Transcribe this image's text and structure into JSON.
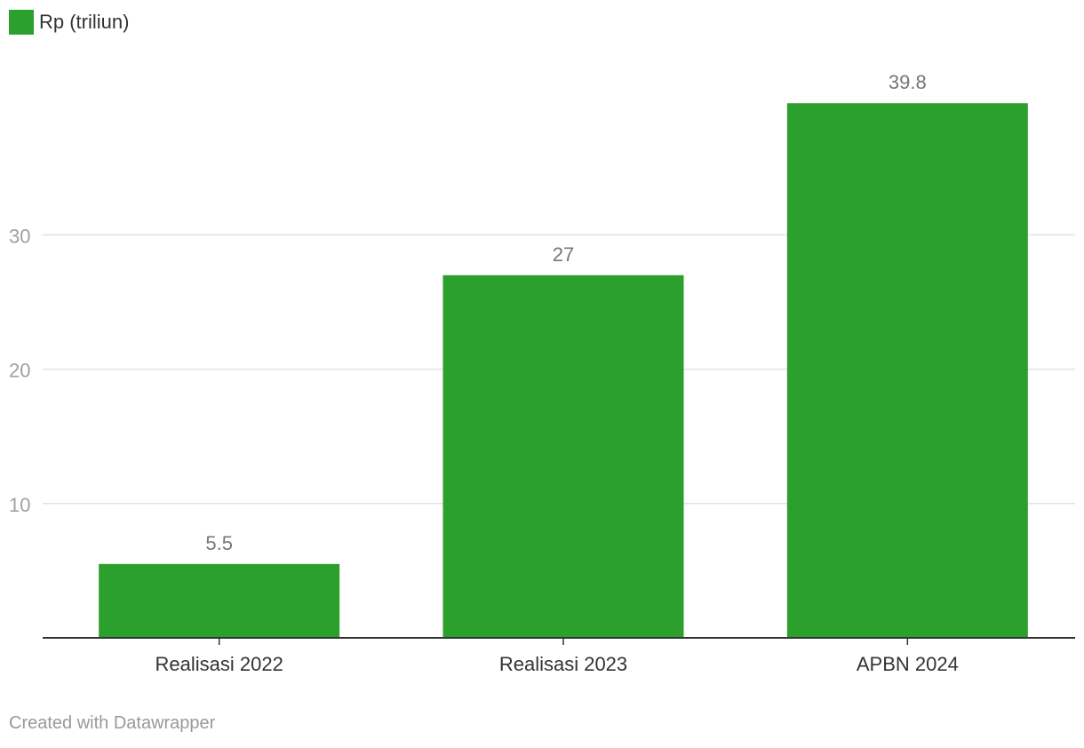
{
  "legend": {
    "label": "Rp (triliun)",
    "color": "#2ca02c"
  },
  "credit": "Created with Datawrapper",
  "chart_data": {
    "type": "bar",
    "categories": [
      "Realisasi 2022",
      "Realisasi 2023",
      "APBN 2024"
    ],
    "series": [
      {
        "name": "Rp (triliun)",
        "values": [
          5.5,
          27,
          39.8
        ],
        "color": "#2ca02c"
      }
    ],
    "value_labels": [
      "5.5",
      "27",
      "39.8"
    ],
    "ylim": [
      0,
      42
    ],
    "yticks": [
      10,
      20,
      30
    ],
    "grid": true,
    "legend_position": "top-left",
    "title": "",
    "xlabel": "",
    "ylabel": ""
  }
}
